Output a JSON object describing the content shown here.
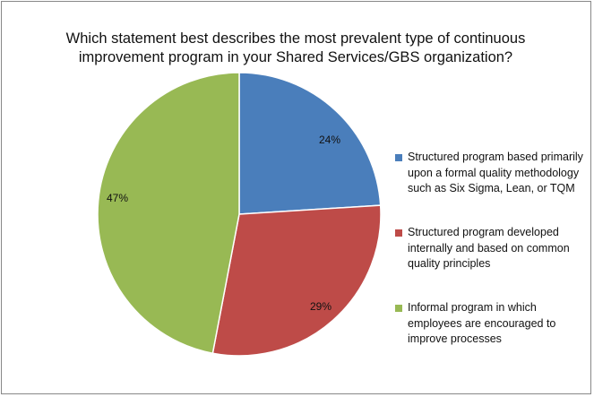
{
  "chart_data": {
    "type": "pie",
    "title_lines": [
      "Which statement best describes the most prevalent type of continuous",
      "improvement program in your Shared Services/GBS organization?"
    ],
    "slices": [
      {
        "label_lines": [
          "Structured program based primarily",
          "upon a formal quality methodology",
          "such as Six Sigma, Lean, or TQM"
        ],
        "value": 24,
        "value_label": "24%",
        "color": "#4a7ebb"
      },
      {
        "label_lines": [
          "Structured program developed",
          "internally and based on common",
          "quality principles"
        ],
        "value": 29,
        "value_label": "29%",
        "color": "#be4b48"
      },
      {
        "label_lines": [
          "Informal program in which",
          "employees are encouraged to",
          "improve processes"
        ],
        "value": 47,
        "value_label": "47%",
        "color": "#98b954"
      }
    ],
    "start_angle": "12 o'clock",
    "direction": "clockwise",
    "legend_position": "right"
  }
}
